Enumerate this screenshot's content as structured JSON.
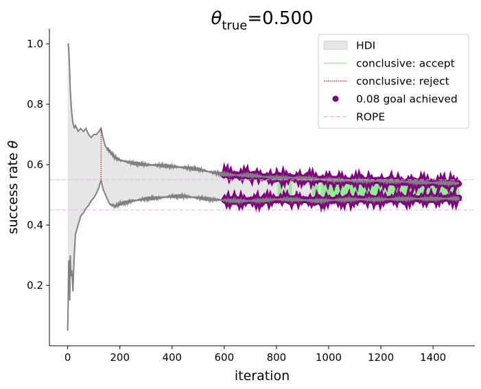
{
  "chart_data": {
    "type": "line",
    "title": {
      "symbol": "θ",
      "subscript": "true",
      "suffix": "=0.500"
    },
    "xlabel": "iteration",
    "ylabel": {
      "text": "success rate ",
      "symbol": "θ"
    },
    "xlim": [
      -70,
      1560
    ],
    "ylim": [
      0,
      1.05
    ],
    "xticks": [
      0,
      200,
      400,
      600,
      800,
      1000,
      1200,
      1400
    ],
    "yticks": [
      0.2,
      0.4,
      0.6,
      0.8,
      1.0
    ],
    "rope": [
      0.45,
      0.55
    ],
    "legend": {
      "placement": "top-right",
      "entries": [
        {
          "label": "HDI",
          "kind": "patch",
          "color": "#e6e6e6"
        },
        {
          "label": "conclusive: accept",
          "kind": "line",
          "color": "#90ee90"
        },
        {
          "label": "conclusive: reject",
          "kind": "dotted-line",
          "color": "#ff0000"
        },
        {
          "label": "0.08 goal achieved",
          "kind": "marker",
          "color": "#800080"
        },
        {
          "label": "ROPE",
          "kind": "dashed-line",
          "color": "#e0b0e0"
        }
      ]
    },
    "hdi_upper": [
      [
        0,
        1.0
      ],
      [
        3,
        1.0
      ],
      [
        5,
        0.97
      ],
      [
        8,
        0.9
      ],
      [
        10,
        0.85
      ],
      [
        13,
        0.8
      ],
      [
        16,
        0.77
      ],
      [
        20,
        0.74
      ],
      [
        25,
        0.72
      ],
      [
        30,
        0.73
      ],
      [
        40,
        0.71
      ],
      [
        50,
        0.72
      ],
      [
        60,
        0.71
      ],
      [
        70,
        0.72
      ],
      [
        80,
        0.7
      ],
      [
        90,
        0.69
      ],
      [
        100,
        0.7
      ],
      [
        110,
        0.7
      ],
      [
        120,
        0.71
      ],
      [
        128,
        0.72
      ],
      [
        135,
        0.69
      ],
      [
        145,
        0.66
      ],
      [
        160,
        0.645
      ],
      [
        180,
        0.625
      ],
      [
        200,
        0.615
      ],
      [
        250,
        0.605
      ],
      [
        300,
        0.6
      ],
      [
        350,
        0.598
      ],
      [
        400,
        0.594
      ],
      [
        450,
        0.59
      ],
      [
        500,
        0.585
      ],
      [
        550,
        0.575
      ],
      [
        600,
        0.568
      ],
      [
        650,
        0.565
      ],
      [
        700,
        0.565
      ],
      [
        750,
        0.56
      ],
      [
        800,
        0.556
      ],
      [
        850,
        0.557
      ],
      [
        900,
        0.555
      ],
      [
        950,
        0.553
      ],
      [
        1000,
        0.55
      ],
      [
        1050,
        0.548
      ],
      [
        1100,
        0.547
      ],
      [
        1200,
        0.546
      ],
      [
        1300,
        0.543
      ],
      [
        1400,
        0.54
      ],
      [
        1500,
        0.538
      ]
    ],
    "hdi_lower": [
      [
        0,
        0.05
      ],
      [
        3,
        0.2
      ],
      [
        5,
        0.35
      ],
      [
        8,
        0.15
      ],
      [
        10,
        0.3
      ],
      [
        13,
        0.22
      ],
      [
        16,
        0.25
      ],
      [
        20,
        0.18
      ],
      [
        25,
        0.3
      ],
      [
        30,
        0.37
      ],
      [
        40,
        0.4
      ],
      [
        50,
        0.43
      ],
      [
        60,
        0.44
      ],
      [
        70,
        0.455
      ],
      [
        80,
        0.465
      ],
      [
        90,
        0.48
      ],
      [
        100,
        0.49
      ],
      [
        110,
        0.505
      ],
      [
        120,
        0.525
      ],
      [
        128,
        0.55
      ],
      [
        135,
        0.52
      ],
      [
        145,
        0.5
      ],
      [
        160,
        0.47
      ],
      [
        180,
        0.462
      ],
      [
        200,
        0.47
      ],
      [
        250,
        0.48
      ],
      [
        300,
        0.487
      ],
      [
        350,
        0.49
      ],
      [
        400,
        0.495
      ],
      [
        450,
        0.495
      ],
      [
        500,
        0.49
      ],
      [
        550,
        0.485
      ],
      [
        600,
        0.482
      ],
      [
        650,
        0.48
      ],
      [
        700,
        0.48
      ],
      [
        750,
        0.482
      ],
      [
        800,
        0.485
      ],
      [
        850,
        0.485
      ],
      [
        900,
        0.483
      ],
      [
        950,
        0.48
      ],
      [
        1000,
        0.482
      ],
      [
        1050,
        0.484
      ],
      [
        1100,
        0.485
      ],
      [
        1200,
        0.485
      ],
      [
        1300,
        0.487
      ],
      [
        1400,
        0.487
      ],
      [
        1500,
        0.488
      ]
    ],
    "reject_segment": {
      "x": 128,
      "y": [
        0.552,
        0.72
      ]
    },
    "accept_ranges": [
      [
        805,
        820
      ],
      [
        833,
        835
      ],
      [
        848,
        858
      ],
      [
        937,
        962
      ],
      [
        970,
        1500
      ]
    ],
    "goal_achieved_from": 598
  }
}
